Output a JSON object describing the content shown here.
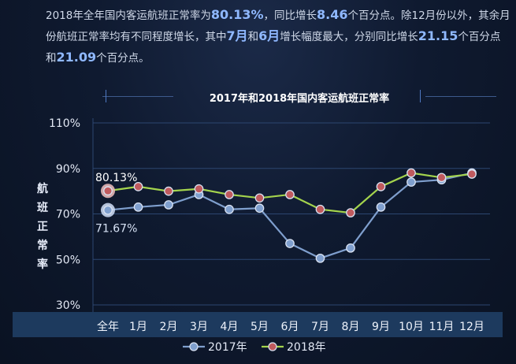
{
  "intro": {
    "p1": "2018年全年国内客运航班正常率为",
    "v1": "80.13%",
    "p2": "，同比增长",
    "v2": "8.46",
    "p3": "个百分点。除12月份以外，其余月份航班正常率均有不同程度增长，其中",
    "v3": "7月",
    "p4": "和",
    "v4": "6月",
    "p5": "增长幅度最大，分别同比增长",
    "v5": "21.15",
    "p6": "个百分点和",
    "v6": "21.09",
    "p7": "个百分点。"
  },
  "colors": {
    "series_2017": "#7f9fce",
    "series_2018": "#a4d44d",
    "marker_2018": "#c05a5e",
    "highlight_2017_label": "#d7e2f5",
    "highlight_2018_label": "#ffffff"
  },
  "chart_data": {
    "type": "line",
    "title": "2017年和2018年国内客运航班正常率",
    "ylabel": "航班正常率",
    "categories": [
      "全年",
      "1月",
      "2月",
      "3月",
      "4月",
      "5月",
      "6月",
      "7月",
      "8月",
      "9月",
      "10月",
      "11月",
      "12月"
    ],
    "ylim": [
      30,
      110
    ],
    "yticks": [
      "110%",
      "90%",
      "70%",
      "50%",
      "30%"
    ],
    "ytick_values": [
      110,
      90,
      70,
      50,
      30
    ],
    "grid": true,
    "legend_position": "bottom",
    "series": [
      {
        "name": "2017年",
        "values": [
          71.67,
          73,
          74,
          78.5,
          72,
          72.5,
          57,
          50.5,
          55,
          73,
          84,
          85,
          88
        ]
      },
      {
        "name": "2018年",
        "values": [
          80.13,
          82,
          80,
          81,
          78.5,
          77,
          78.5,
          72,
          70.5,
          82,
          88,
          86,
          87.5
        ]
      }
    ],
    "annotations": [
      {
        "text": "80.13%",
        "series": "2018年",
        "category": "全年"
      },
      {
        "text": "71.67%",
        "series": "2017年",
        "category": "全年"
      }
    ]
  }
}
